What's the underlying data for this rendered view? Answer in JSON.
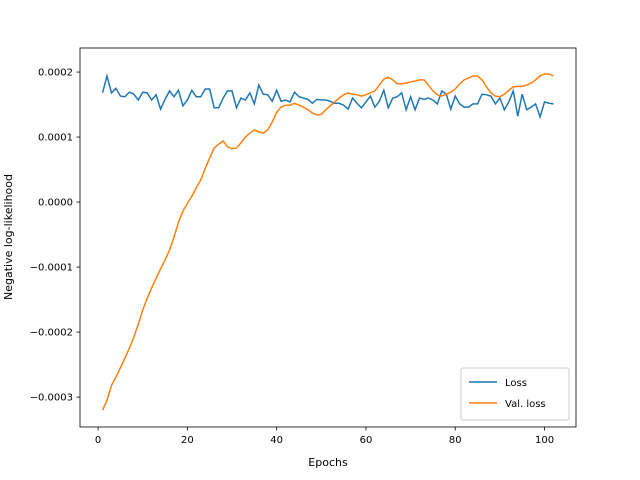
{
  "chart_data": {
    "type": "line",
    "xlabel": "Epochs",
    "ylabel": "Negative log-likelihood",
    "x": [
      1,
      2,
      3,
      4,
      5,
      6,
      7,
      8,
      9,
      10,
      11,
      12,
      13,
      14,
      15,
      16,
      17,
      18,
      19,
      20,
      21,
      22,
      23,
      24,
      25,
      26,
      27,
      28,
      29,
      30,
      31,
      32,
      33,
      34,
      35,
      36,
      37,
      38,
      39,
      40,
      41,
      42,
      43,
      44,
      45,
      46,
      47,
      48,
      49,
      50,
      51,
      52,
      53,
      54,
      55,
      56,
      57,
      58,
      59,
      60,
      61,
      62,
      63,
      64,
      65,
      66,
      67,
      68,
      69,
      70,
      71,
      72,
      73,
      74,
      75,
      76,
      77,
      78,
      79,
      80,
      81,
      82,
      83,
      84,
      85,
      86,
      87,
      88,
      89,
      90,
      91,
      92,
      93,
      94,
      95,
      96,
      97,
      98,
      99,
      100,
      101,
      102
    ],
    "series": [
      {
        "name": "Loss",
        "color": "#1f77b4",
        "values": [
          0.000168,
          0.000194,
          0.000168,
          0.000175,
          0.000163,
          0.000162,
          0.000169,
          0.000166,
          0.000157,
          0.000169,
          0.000168,
          0.000157,
          0.000165,
          0.000143,
          0.000158,
          0.000171,
          0.000162,
          0.000172,
          0.000148,
          0.000157,
          0.000172,
          0.000162,
          0.000162,
          0.000174,
          0.000174,
          0.000145,
          0.000145,
          0.00016,
          0.000171,
          0.000171,
          0.000145,
          0.00016,
          0.000157,
          0.000168,
          0.000151,
          0.00018,
          0.000166,
          0.000165,
          0.000155,
          0.000172,
          0.000155,
          0.000157,
          0.000154,
          0.000169,
          0.000162,
          0.00016,
          0.000158,
          0.000152,
          0.000158,
          0.000157,
          0.000157,
          0.000155,
          0.000152,
          0.000152,
          0.000149,
          0.000143,
          0.00016,
          0.000152,
          0.000145,
          0.000154,
          0.000163,
          0.000146,
          0.000155,
          0.000172,
          0.000145,
          0.00016,
          0.000162,
          0.000168,
          0.000142,
          0.000162,
          0.000142,
          0.00016,
          0.000158,
          0.00016,
          0.000157,
          0.000151,
          0.000171,
          0.000166,
          0.000143,
          0.000163,
          0.000151,
          0.000146,
          0.000146,
          0.000151,
          0.000151,
          0.000166,
          0.000165,
          0.000163,
          0.000151,
          0.00016,
          0.000142,
          0.000154,
          0.000171,
          0.000132,
          0.000166,
          0.000142,
          0.000146,
          0.000151,
          0.000131,
          0.000154,
          0.000152,
          0.000151
        ]
      },
      {
        "name": "Val. loss",
        "color": "#ff7f0e",
        "values": [
          -0.00032,
          -0.000305,
          -0.000282,
          -0.000269,
          -0.000255,
          -0.00024,
          -0.000225,
          -0.000208,
          -0.000188,
          -0.000166,
          -0.000148,
          -0.000132,
          -0.000117,
          -0.000103,
          -8.9e-05,
          -7.4e-05,
          -5.4e-05,
          -3.1e-05,
          -1.4e-05,
          -2e-06,
          9e-06,
          2.2e-05,
          3.4e-05,
          5.2e-05,
          6.8e-05,
          8.3e-05,
          8.9e-05,
          9.4e-05,
          8.5e-05,
          8.2e-05,
          8.3e-05,
          9.1e-05,
          0.0001,
          0.000106,
          0.000111,
          0.000108,
          0.000106,
          0.000111,
          0.000123,
          0.000138,
          0.000146,
          0.000149,
          0.000149,
          0.000152,
          0.000149,
          0.000146,
          0.000142,
          0.000137,
          0.000134,
          0.000135,
          0.000142,
          0.000148,
          0.000154,
          0.00016,
          0.000165,
          0.000168,
          0.000166,
          0.000165,
          0.000163,
          0.000165,
          0.000168,
          0.000171,
          0.00018,
          0.000189,
          0.000192,
          0.000188,
          0.000182,
          0.000182,
          0.000183,
          0.000185,
          0.000186,
          0.000188,
          0.000188,
          0.00018,
          0.000171,
          0.000165,
          0.000163,
          0.000166,
          0.000169,
          0.000174,
          0.000182,
          0.000188,
          0.000191,
          0.000194,
          0.000194,
          0.000188,
          0.000177,
          0.000168,
          0.000163,
          0.000162,
          0.000166,
          0.000172,
          0.000177,
          0.000178,
          0.000178,
          0.00018,
          0.000183,
          0.000188,
          0.000194,
          0.000197,
          0.000197,
          0.000194
        ]
      }
    ],
    "xlim": [
      -4.05,
      107.05
    ],
    "ylim": [
      -0.000346,
      0.000237
    ],
    "xticks": [
      0,
      20,
      40,
      60,
      80,
      100
    ],
    "yticks": [
      {
        "value": -0.0003,
        "label": "−0.0003"
      },
      {
        "value": -0.0002,
        "label": "−0.0002"
      },
      {
        "value": -0.0001,
        "label": "−0.0001"
      },
      {
        "value": 0,
        "label": "0.0000"
      },
      {
        "value": 0.0001,
        "label": "0.0001"
      },
      {
        "value": 0.0002,
        "label": "0.0002"
      }
    ],
    "grid": false,
    "legend": "lower right"
  }
}
